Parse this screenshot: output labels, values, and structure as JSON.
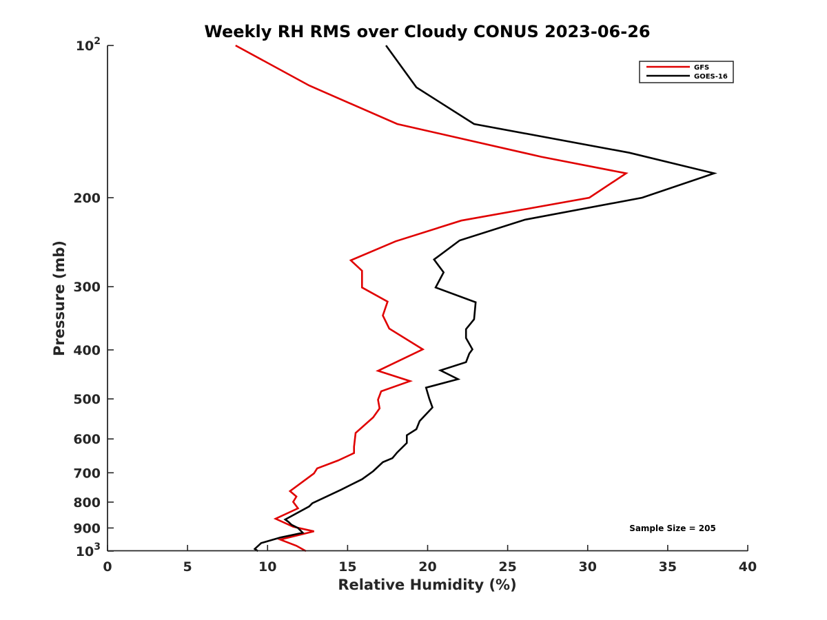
{
  "chart_data": {
    "type": "line",
    "title": "Weekly RH RMS over Cloudy CONUS 2023-06-26",
    "xlabel": "Relative Humidity (%)",
    "ylabel": "Pressure (mb)",
    "xlim": [
      0,
      40
    ],
    "ylim": [
      100,
      1000
    ],
    "y_scale": "log",
    "y_reversed": true,
    "grid": false,
    "legend_position": "top-right",
    "x_ticks": [
      "0",
      "5",
      "10",
      "15",
      "20",
      "25",
      "30",
      "35",
      "40"
    ],
    "y_ticks": [
      {
        "value": 100,
        "base": "10",
        "exp": "2"
      },
      {
        "value": 200,
        "label": "200"
      },
      {
        "value": 300,
        "label": "300"
      },
      {
        "value": 400,
        "label": "400"
      },
      {
        "value": 500,
        "label": "500"
      },
      {
        "value": 600,
        "label": "600"
      },
      {
        "value": 700,
        "label": "700"
      },
      {
        "value": 800,
        "label": "800"
      },
      {
        "value": 900,
        "label": "900"
      },
      {
        "value": 1000,
        "base": "10",
        "exp": "3"
      }
    ],
    "annotation": "Sample Size = 205",
    "series": [
      {
        "name": "GFS",
        "color": "#e00000",
        "points": [
          {
            "x": 8.0,
            "y": 100
          },
          {
            "x": 12.6,
            "y": 120
          },
          {
            "x": 18.1,
            "y": 143
          },
          {
            "x": 27.1,
            "y": 166
          },
          {
            "x": 32.4,
            "y": 179
          },
          {
            "x": 30.1,
            "y": 200
          },
          {
            "x": 22.1,
            "y": 222
          },
          {
            "x": 18.0,
            "y": 244
          },
          {
            "x": 15.2,
            "y": 266
          },
          {
            "x": 15.9,
            "y": 279
          },
          {
            "x": 15.9,
            "y": 301
          },
          {
            "x": 17.5,
            "y": 321
          },
          {
            "x": 17.2,
            "y": 342
          },
          {
            "x": 17.6,
            "y": 363
          },
          {
            "x": 19.7,
            "y": 399
          },
          {
            "x": 16.9,
            "y": 440
          },
          {
            "x": 18.9,
            "y": 461
          },
          {
            "x": 17.1,
            "y": 483
          },
          {
            "x": 16.9,
            "y": 502
          },
          {
            "x": 17.0,
            "y": 522
          },
          {
            "x": 16.6,
            "y": 544
          },
          {
            "x": 15.5,
            "y": 584
          },
          {
            "x": 15.4,
            "y": 622
          },
          {
            "x": 15.4,
            "y": 640
          },
          {
            "x": 14.4,
            "y": 662
          },
          {
            "x": 13.1,
            "y": 686
          },
          {
            "x": 12.9,
            "y": 702
          },
          {
            "x": 11.4,
            "y": 761
          },
          {
            "x": 11.8,
            "y": 780
          },
          {
            "x": 11.6,
            "y": 799
          },
          {
            "x": 11.9,
            "y": 823
          },
          {
            "x": 10.5,
            "y": 863
          },
          {
            "x": 11.6,
            "y": 895
          },
          {
            "x": 12.9,
            "y": 914
          },
          {
            "x": 10.8,
            "y": 949
          },
          {
            "x": 11.8,
            "y": 976
          },
          {
            "x": 12.4,
            "y": 1000
          }
        ]
      },
      {
        "name": "GOES-16",
        "color": "#000000",
        "points": [
          {
            "x": 17.4,
            "y": 100
          },
          {
            "x": 19.3,
            "y": 121
          },
          {
            "x": 22.9,
            "y": 143
          },
          {
            "x": 32.6,
            "y": 163
          },
          {
            "x": 37.9,
            "y": 179
          },
          {
            "x": 33.4,
            "y": 200
          },
          {
            "x": 26.1,
            "y": 221
          },
          {
            "x": 22.0,
            "y": 243
          },
          {
            "x": 20.4,
            "y": 265
          },
          {
            "x": 21.0,
            "y": 281
          },
          {
            "x": 20.5,
            "y": 301
          },
          {
            "x": 23.0,
            "y": 322
          },
          {
            "x": 22.9,
            "y": 348
          },
          {
            "x": 22.4,
            "y": 364
          },
          {
            "x": 22.4,
            "y": 379
          },
          {
            "x": 22.8,
            "y": 399
          },
          {
            "x": 22.6,
            "y": 407
          },
          {
            "x": 22.4,
            "y": 423
          },
          {
            "x": 20.8,
            "y": 439
          },
          {
            "x": 21.9,
            "y": 457
          },
          {
            "x": 19.9,
            "y": 475
          },
          {
            "x": 20.1,
            "y": 499
          },
          {
            "x": 20.3,
            "y": 520
          },
          {
            "x": 19.5,
            "y": 553
          },
          {
            "x": 19.3,
            "y": 574
          },
          {
            "x": 18.7,
            "y": 590
          },
          {
            "x": 18.7,
            "y": 611
          },
          {
            "x": 18.1,
            "y": 638
          },
          {
            "x": 17.8,
            "y": 655
          },
          {
            "x": 17.2,
            "y": 667
          },
          {
            "x": 16.6,
            "y": 695
          },
          {
            "x": 15.9,
            "y": 721
          },
          {
            "x": 14.6,
            "y": 756
          },
          {
            "x": 12.8,
            "y": 804
          },
          {
            "x": 12.6,
            "y": 816
          },
          {
            "x": 11.1,
            "y": 866
          },
          {
            "x": 11.3,
            "y": 875
          },
          {
            "x": 11.5,
            "y": 887
          },
          {
            "x": 11.9,
            "y": 900
          },
          {
            "x": 12.2,
            "y": 920
          },
          {
            "x": 10.8,
            "y": 940
          },
          {
            "x": 9.6,
            "y": 964
          },
          {
            "x": 9.2,
            "y": 990
          },
          {
            "x": 9.4,
            "y": 1000
          }
        ]
      }
    ]
  }
}
